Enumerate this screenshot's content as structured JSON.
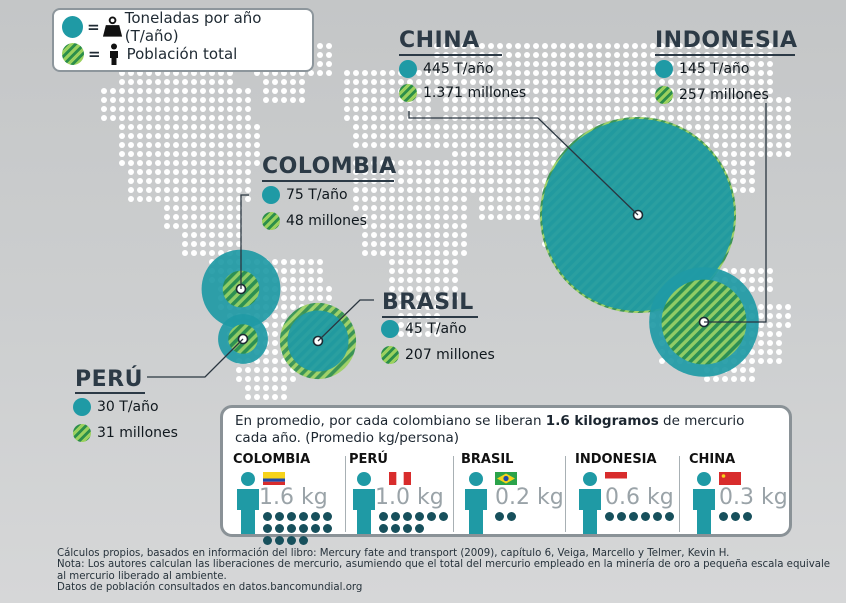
{
  "legend": {
    "tons_label": "Toneladas por año (T/año)",
    "population_label": "Población total",
    "equals": "="
  },
  "colors": {
    "tons_teal": "#1f9aa5",
    "stripe_light": "#9bd15e",
    "stripe_dark": "#2c8e4a",
    "dot_dark": "#17505c"
  },
  "chart_data": {
    "type": "bubble-map",
    "countries": [
      {
        "name": "CHINA",
        "tons_label": "445 T/año",
        "population_label": "1.371 millones",
        "tons": 445,
        "population_millions": 1371
      },
      {
        "name": "INDONESIA",
        "tons_label": "145 T/año",
        "population_label": "257 millones",
        "tons": 145,
        "population_millions": 257
      },
      {
        "name": "COLOMBIA",
        "tons_label": "75 T/año",
        "population_label": "48 millones",
        "tons": 75,
        "population_millions": 48
      },
      {
        "name": "BRASIL",
        "tons_label": "45 T/año",
        "population_label": "207 millones",
        "tons": 45,
        "population_millions": 207
      },
      {
        "name": "PERÚ",
        "tons_label": "30 T/año",
        "population_label": "31 millones",
        "tons": 30,
        "population_millions": 31
      }
    ]
  },
  "average": {
    "intro": "En promedio, por cada colombiano se liberan ",
    "highlight": "1.6 kilogramos",
    "rest": " de mercurio cada año.",
    "paren": " (Promedio kg/persona)",
    "per_person": [
      {
        "name": "COLOMBIA",
        "kg_label": "1.6 kg",
        "kg": 1.6,
        "dots": 16
      },
      {
        "name": "PERÚ",
        "kg_label": "1.0 kg",
        "kg": 1.0,
        "dots": 10
      },
      {
        "name": "BRASIL",
        "kg_label": "0.2 kg",
        "kg": 0.2,
        "dots": 2
      },
      {
        "name": "INDONESIA",
        "kg_label": "0.6 kg",
        "kg": 0.6,
        "dots": 6
      },
      {
        "name": "CHINA",
        "kg_label": "0.3 kg",
        "kg": 0.3,
        "dots": 3
      }
    ]
  },
  "footnote": {
    "line1": "Cálculos propios, basados en información del libro: Mercury fate and transport (2009), capítulo 6, Veiga, Marcello y Telmer, Kevin H.",
    "line2": "Nota: Los autores calculan las liberaciones de mercurio, asumiendo que el total del mercurio empleado en la minería de oro a pequeña escala equivale al mercurio liberado al ambiente.",
    "line3": "Datos de población consultados en datos.bancomundial.org"
  }
}
